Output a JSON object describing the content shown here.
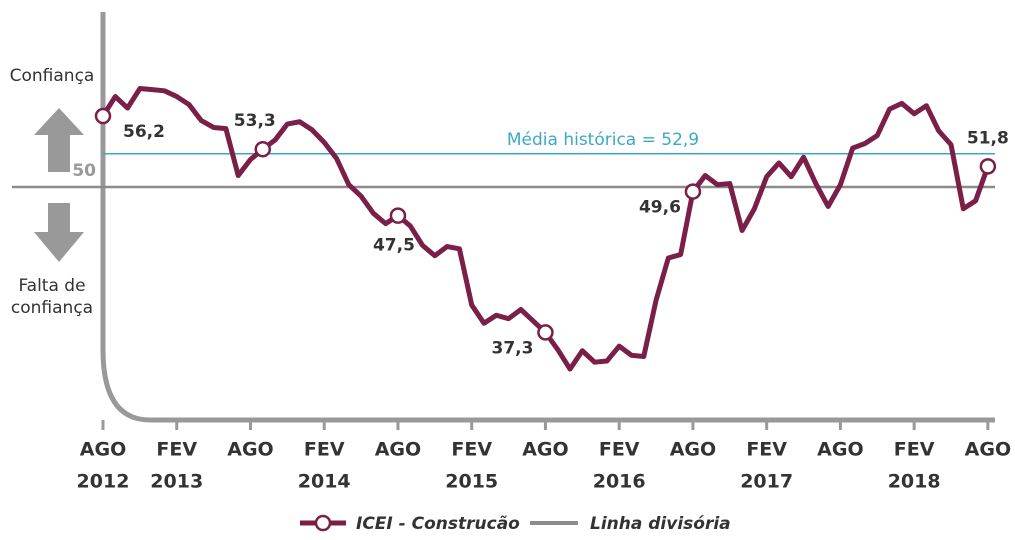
{
  "chart_data": {
    "type": "line",
    "categories": [
      "AGO",
      null,
      null,
      null,
      null,
      null,
      "FEV",
      null,
      null,
      null,
      null,
      null,
      "AGO",
      null,
      null,
      null,
      null,
      null,
      "FEV",
      null,
      null,
      null,
      null,
      null,
      "AGO",
      null,
      null,
      null,
      null,
      null,
      "FEV",
      null,
      null,
      null,
      null,
      null,
      "AGO",
      null,
      null,
      null,
      null,
      null,
      "FEV",
      null,
      null,
      null,
      null,
      null,
      "AGO",
      null,
      null,
      null,
      null,
      null,
      "FEV",
      null,
      null,
      null,
      null,
      null,
      "AGO",
      null,
      null,
      null,
      null,
      null,
      "FEV",
      null,
      null,
      null,
      null,
      null,
      "AGO"
    ],
    "years": [
      "2012",
      null,
      null,
      null,
      null,
      null,
      "2013",
      null,
      null,
      null,
      null,
      null,
      null,
      null,
      null,
      null,
      null,
      null,
      "2014",
      null,
      null,
      null,
      null,
      null,
      null,
      null,
      null,
      null,
      null,
      null,
      "2015",
      null,
      null,
      null,
      null,
      null,
      null,
      null,
      null,
      null,
      null,
      null,
      "2016",
      null,
      null,
      null,
      null,
      null,
      null,
      null,
      null,
      null,
      null,
      null,
      "2017",
      null,
      null,
      null,
      null,
      null,
      null,
      null,
      null,
      null,
      null,
      null,
      "2018",
      null,
      null,
      null,
      null,
      null,
      null
    ],
    "series": [
      {
        "name": "ICEI - Construcão",
        "color": "#7a1f48",
        "values": [
          56.2,
          57.9,
          56.9,
          58.6,
          58.5,
          58.4,
          57.9,
          57.2,
          55.8,
          55.2,
          55.1,
          51.0,
          52.4,
          53.3,
          54.1,
          55.5,
          55.7,
          55.0,
          53.9,
          52.5,
          50.2,
          49.2,
          47.7,
          46.8,
          47.5,
          46.6,
          44.9,
          44.0,
          44.8,
          44.6,
          39.7,
          38.1,
          38.8,
          38.5,
          39.3,
          38.3,
          37.3,
          35.8,
          34.1,
          35.7,
          34.7,
          34.8,
          36.1,
          35.3,
          35.2,
          40.1,
          43.8,
          44.1,
          49.6,
          51.0,
          50.2,
          50.3,
          46.2,
          48.1,
          50.9,
          52.1,
          50.9,
          52.6,
          50.3,
          48.3,
          50.2,
          53.4,
          53.8,
          54.5,
          56.8,
          57.3,
          56.4,
          57.1,
          54.9,
          53.7,
          48.1,
          48.8,
          51.8
        ],
        "value_labels": [
          "56,2",
          null,
          null,
          null,
          null,
          null,
          null,
          null,
          null,
          null,
          null,
          null,
          null,
          "53,3",
          null,
          null,
          null,
          null,
          null,
          null,
          null,
          null,
          null,
          null,
          "47,5",
          null,
          null,
          null,
          null,
          null,
          null,
          null,
          null,
          null,
          null,
          null,
          "37,3",
          null,
          null,
          null,
          null,
          null,
          null,
          null,
          null,
          null,
          null,
          null,
          "49,6",
          null,
          null,
          null,
          null,
          null,
          null,
          null,
          null,
          null,
          null,
          null,
          null,
          null,
          null,
          null,
          null,
          null,
          null,
          null,
          null,
          null,
          null,
          null,
          "51,8"
        ]
      },
      {
        "name": "Linha divisória",
        "color": "#8c8c8c",
        "reference": 50
      }
    ],
    "mean": {
      "value": 52.9,
      "label": "Média histórica = 52,9",
      "color": "#3aaac4"
    },
    "ylim": [
      30,
      65
    ],
    "yticks": [
      50
    ],
    "side_labels": {
      "top": [
        "Confiança"
      ],
      "bottom": [
        "Falta de",
        "confiança"
      ]
    }
  }
}
